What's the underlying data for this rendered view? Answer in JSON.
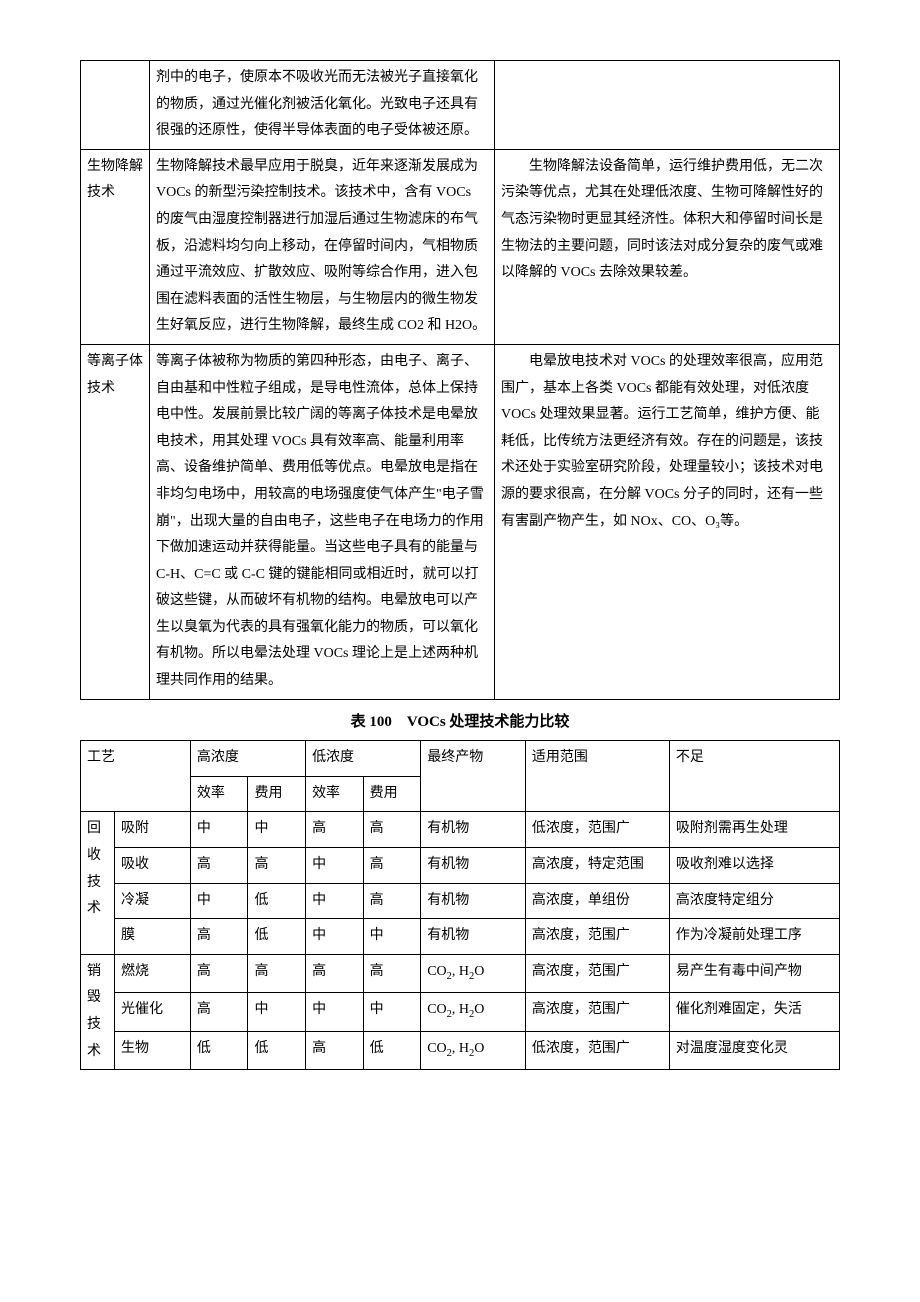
{
  "table1": {
    "rows": [
      {
        "name": "",
        "desc": "剂中的电子，使原本不吸收光而无法被光子直接氧化的物质，通过光催化剂被活化氧化。光致电子还具有很强的还原性，使得半导体表面的电子受体被还原。",
        "note": ""
      },
      {
        "name": "生物降解技术",
        "desc": "生物降解技术最早应用于脱臭，近年来逐渐发展成为 VOCs 的新型污染控制技术。该技术中，含有 VOCs 的废气由湿度控制器进行加湿后通过生物滤床的布气板，沿滤料均匀向上移动，在停留时间内，气相物质通过平流效应、扩散效应、吸附等综合作用，进入包围在滤料表面的活性生物层，与生物层内的微生物发生好氧反应，进行生物降解，最终生成 CO2 和 H2O。",
        "note": "生物降解法设备简单，运行维护费用低，无二次污染等优点，尤其在处理低浓度、生物可降解性好的气态污染物时更显其经济性。体积大和停留时间长是生物法的主要问题，同时该法对成分复杂的废气或难以降解的 VOCs 去除效果较差。"
      },
      {
        "name": "等离子体技术",
        "desc": "等离子体被称为物质的第四种形态，由电子、离子、自由基和中性粒子组成，是导电性流体，总体上保持电中性。发展前景比较广阔的等离子体技术是电晕放电技术，用其处理 VOCs 具有效率高、能量利用率高、设备维护简单、费用低等优点。电晕放电是指在非均匀电场中，用较高的电场强度使气体产生\"电子雪崩\"，出现大量的自由电子，这些电子在电场力的作用下做加速运动并获得能量。当这些电子具有的能量与 C-H、C=C 或 C-C 键的键能相同或相近时，就可以打破这些键，从而破坏有机物的结构。电晕放电可以产生以臭氧为代表的具有强氧化能力的物质，可以氧化有机物。所以电晕法处理 VOCs 理论上是上述两种机理共同作用的结果。",
        "note": "电晕放电技术对 VOCs 的处理效率很高，应用范围广，基本上各类 VOCs 都能有效处理，对低浓度 VOCs 处理效果显著。运行工艺简单，维护方便、能耗低，比传统方法更经济有效。存在的问题是，该技术还处于实验室研究阶段，处理量较小；该技术对电源的要求很高，在分解 VOCs 分子的同时，还有一些有害副产物产生，如 NOx、CO、O₃等。"
      }
    ]
  },
  "caption2": "表 100　VOCs 处理技术能力比较",
  "table2": {
    "header": {
      "proc": "工艺",
      "high": "高浓度",
      "low": "低浓度",
      "prod": "最终产物",
      "scope": "适用范围",
      "short": "不足",
      "eff": "效率",
      "cost": "费用"
    },
    "groups": [
      {
        "name": "回收技术",
        "rows": [
          {
            "tech": "吸附",
            "he": "中",
            "hc": "中",
            "le": "高",
            "lc": "高",
            "prod": "有机物",
            "scope": "低浓度，范围广",
            "short": "吸附剂需再生处理"
          },
          {
            "tech": "吸收",
            "he": "高",
            "hc": "高",
            "le": "中",
            "lc": "高",
            "prod": "有机物",
            "scope": "高浓度，特定范围",
            "short": "吸收剂难以选择"
          },
          {
            "tech": "冷凝",
            "he": "中",
            "hc": "低",
            "le": "中",
            "lc": "高",
            "prod": "有机物",
            "scope": "高浓度，单组份",
            "short": "高浓度特定组分"
          },
          {
            "tech": "膜",
            "he": "高",
            "hc": "低",
            "le": "中",
            "lc": "中",
            "prod": "有机物",
            "scope": "高浓度，范围广",
            "short": "作为冷凝前处理工序"
          }
        ]
      },
      {
        "name": "销毁技术",
        "rows": [
          {
            "tech": "燃烧",
            "he": "高",
            "hc": "高",
            "le": "高",
            "lc": "高",
            "prod_html": "CO<sub>2</sub>, H<sub>2</sub>O",
            "scope": "高浓度，范围广",
            "short": "易产生有毒中间产物"
          },
          {
            "tech": "光催化",
            "he": "高",
            "hc": "中",
            "le": "中",
            "lc": "中",
            "prod_html": "CO<sub>2</sub>, H<sub>2</sub>O",
            "scope": "高浓度，范围广",
            "short": "催化剂难固定，失活"
          },
          {
            "tech": "生物",
            "he": "低",
            "hc": "低",
            "le": "高",
            "lc": "低",
            "prod_html": "CO<sub>2</sub>, H<sub>2</sub>O",
            "scope": "低浓度，范围广",
            "short": "对温度湿度变化灵"
          }
        ]
      }
    ]
  }
}
